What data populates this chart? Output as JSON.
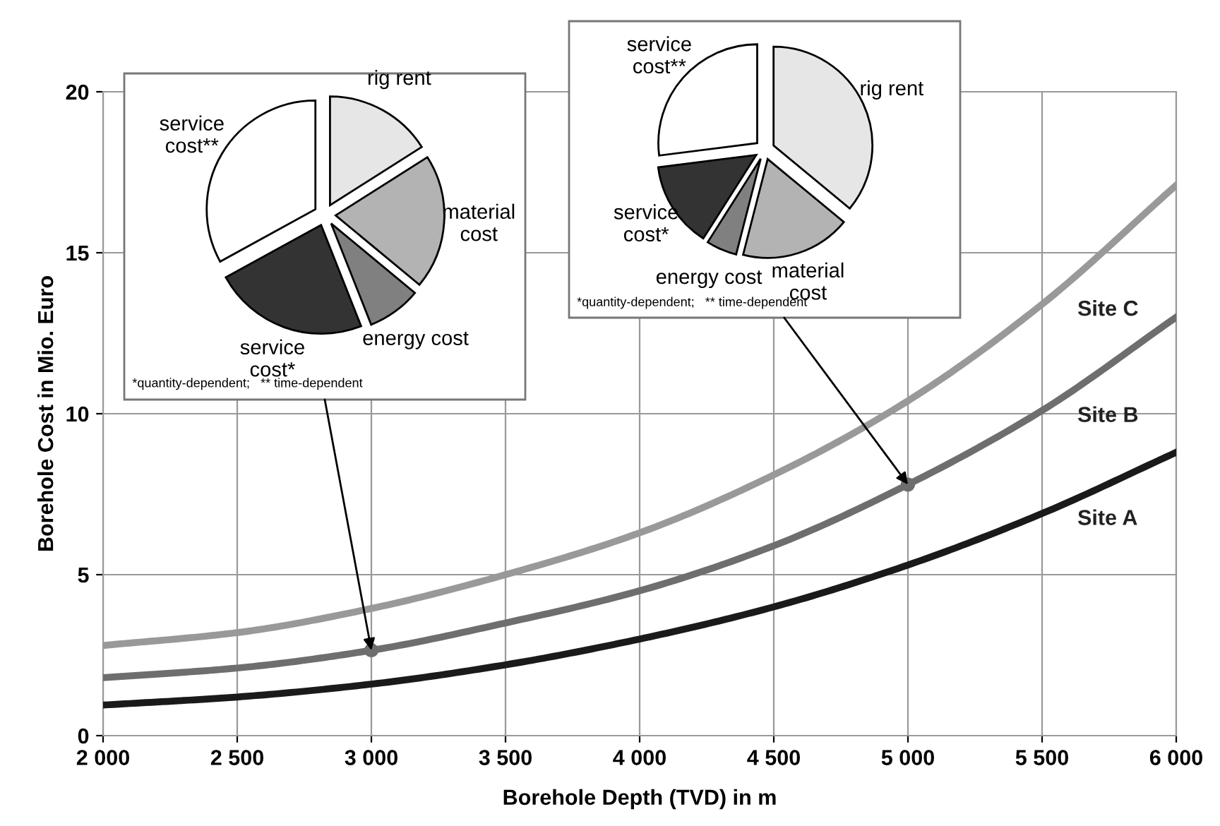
{
  "chart_data": [
    {
      "type": "line",
      "xlabel": "Borehole Depth (TVD) in m",
      "ylabel": "Borehole Cost in Mio. Euro",
      "x": [
        2000,
        2500,
        3000,
        3500,
        4000,
        4500,
        5000,
        5500,
        6000
      ],
      "series": [
        {
          "name": "Site C",
          "color": "#999999",
          "values": [
            2.8,
            3.2,
            3.95,
            5.0,
            6.3,
            8.1,
            10.4,
            13.4,
            17.1
          ]
        },
        {
          "name": "Site B",
          "color": "#6e6e6e",
          "values": [
            1.8,
            2.1,
            2.65,
            3.5,
            4.5,
            5.9,
            7.8,
            10.1,
            13.0
          ]
        },
        {
          "name": "Site A",
          "color": "#1a1a1a",
          "values": [
            0.95,
            1.2,
            1.6,
            2.2,
            3.0,
            4.0,
            5.3,
            6.9,
            8.8
          ]
        },
        {
          "type": "scatter",
          "color": "#6e6e6e",
          "marker": "circle",
          "x": [
            3000,
            5000
          ],
          "values": [
            2.65,
            7.8
          ]
        }
      ],
      "xlim": [
        2000,
        6000
      ],
      "ylim": [
        0,
        20
      ],
      "xticks": [
        {
          "value": 2000,
          "label": "2 000"
        },
        {
          "value": 2500,
          "label": "2 500"
        },
        {
          "value": 3000,
          "label": "3 000"
        },
        {
          "value": 3500,
          "label": "3 500"
        },
        {
          "value": 4000,
          "label": "4 000"
        },
        {
          "value": 4500,
          "label": "4 500"
        },
        {
          "value": 5000,
          "label": "5 000"
        },
        {
          "value": 5500,
          "label": "5 500"
        },
        {
          "value": 6000,
          "label": "6 000"
        }
      ],
      "yticks": [
        0,
        5,
        10,
        15,
        20
      ],
      "grid": true,
      "marker": "none",
      "line_style": "solid",
      "legend": false
    },
    {
      "type": "pie",
      "categories": [
        "rig rent",
        "material\ncost",
        "energy cost",
        "service\ncost*",
        "service\ncost**"
      ],
      "values": [
        16,
        20,
        8,
        23,
        33
      ],
      "colors": [
        "#e6e6e6",
        "#b3b3b3",
        "#808080",
        "#333333",
        "#ffffff"
      ],
      "annotations": [
        "*quantity-dependent;   ** time-dependent"
      ]
    },
    {
      "type": "pie",
      "categories": [
        "rig rent",
        "material\ncost",
        "energy cost",
        "service\ncost*",
        "service\ncost**"
      ],
      "values": [
        36,
        18,
        5,
        14,
        27
      ],
      "colors": [
        "#e6e6e6",
        "#b3b3b3",
        "#808080",
        "#333333",
        "#ffffff"
      ],
      "annotations": [
        "*quantity-dependent;   ** time-dependent"
      ]
    }
  ]
}
